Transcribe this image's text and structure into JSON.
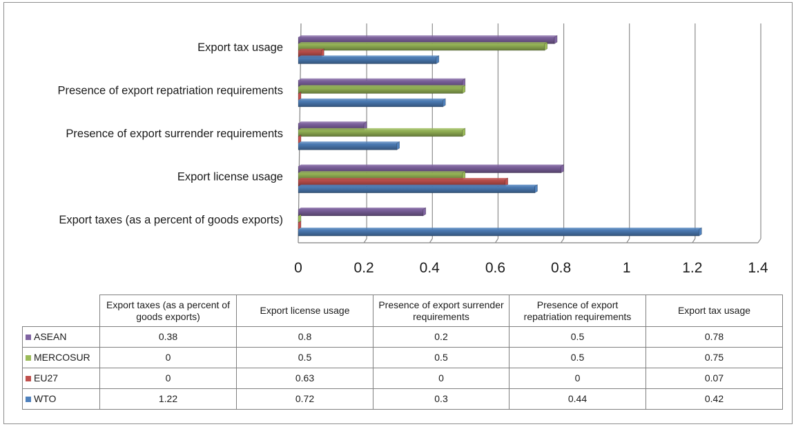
{
  "chart_data": {
    "type": "bar",
    "orientation": "horizontal",
    "categories": [
      "Export taxes (as a percent of goods exports)",
      "Export license usage",
      "Presence of export surrender requirements",
      "Presence of export repatriation requirements",
      "Export tax usage"
    ],
    "series": [
      {
        "name": "ASEAN",
        "color": "#8064A2",
        "values": [
          0.38,
          0.8,
          0.2,
          0.5,
          0.78
        ]
      },
      {
        "name": "MERCOSUR",
        "color": "#9BBB59",
        "values": [
          0,
          0.5,
          0.5,
          0.5,
          0.75
        ]
      },
      {
        "name": "EU27",
        "color": "#C0504D",
        "values": [
          0,
          0.63,
          0,
          0,
          0.07
        ]
      },
      {
        "name": "WTO",
        "color": "#4F81BD",
        "values": [
          1.22,
          0.72,
          0.3,
          0.44,
          0.42
        ]
      }
    ],
    "xlim": [
      0,
      1.4
    ],
    "xticks": [
      "0",
      "0.2",
      "0.4",
      "0.6",
      "0.8",
      "1",
      "1.2",
      "1.4"
    ],
    "grid": true,
    "style": "3d-clustered",
    "legend": "data-table-below",
    "table": {
      "column_headers": [
        "Export taxes (as a percent of goods exports)",
        "Export license usage",
        "Presence of export surrender requirements",
        "Presence of export repatriation requirements",
        "Export tax usage"
      ],
      "rows": [
        {
          "series": "ASEAN",
          "cells": [
            "0.38",
            "0.8",
            "0.2",
            "0.5",
            "0.78"
          ]
        },
        {
          "series": "MERCOSUR",
          "cells": [
            "0",
            "0.5",
            "0.5",
            "0.5",
            "0.75"
          ]
        },
        {
          "series": "EU27",
          "cells": [
            "0",
            "0.63",
            "0",
            "0",
            "0.07"
          ]
        },
        {
          "series": "WTO",
          "cells": [
            "1.22",
            "0.72",
            "0.3",
            "0.44",
            "0.42"
          ]
        }
      ]
    }
  }
}
